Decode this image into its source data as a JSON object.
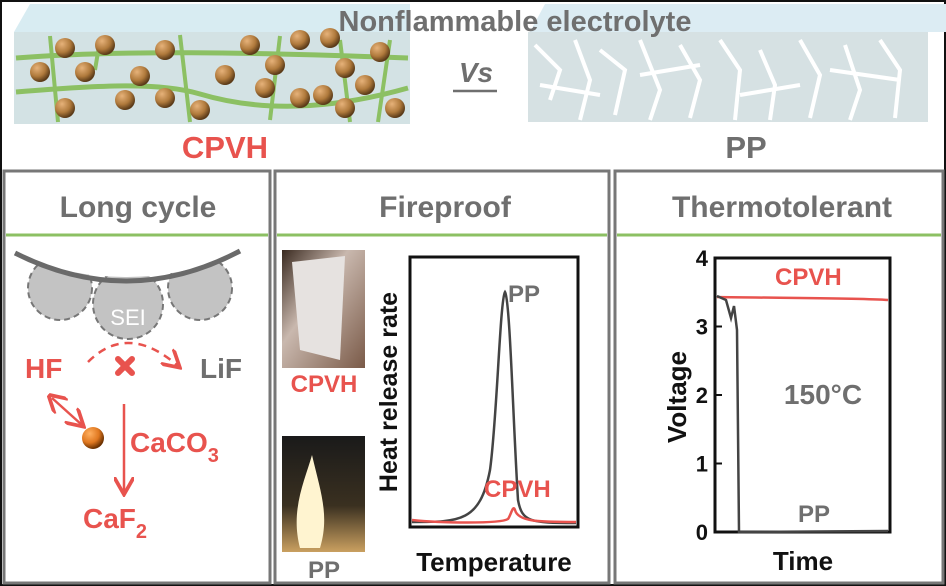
{
  "header": {
    "title": "Nonflammable electrolyte",
    "vs": "Vs",
    "left_label": "CPVH",
    "right_label": "PP"
  },
  "colors": {
    "red": "#e8534e",
    "gray": "#6f6f6f",
    "green": "#8cc063",
    "particle": "#b07a3c",
    "membrane": "#d3e2e4"
  },
  "panels": [
    {
      "title": "Long cycle",
      "sei": "SEI",
      "hf": "HF",
      "lif": "LiF",
      "caco3": "CaCO",
      "caco3_sub": "3",
      "caf2": "CaF",
      "caf2_sub": "2"
    },
    {
      "title": "Fireproof",
      "photo_top_label": "CPVH",
      "photo_bottom_label": "PP",
      "ylabel": "Heat release rate",
      "xlabel": "Temperature",
      "pp_label": "PP",
      "cpvh_label": "CPVH"
    },
    {
      "title": "Thermotolerant",
      "ylabel": "Voltage",
      "xlabel": "Time",
      "yticks": [
        "0",
        "1",
        "2",
        "3",
        "4"
      ],
      "cpvh_label": "CPVH",
      "pp_label": "PP",
      "temp_label": "150°C"
    }
  ],
  "chart_data": [
    {
      "type": "line",
      "xlabel": "Temperature",
      "ylabel": "Heat release rate",
      "series": [
        {
          "name": "PP",
          "color": "#444444",
          "shape": "single sharp high peak"
        },
        {
          "name": "CPVH",
          "color": "#e8534e",
          "shape": "flat baseline with small peak"
        }
      ]
    },
    {
      "type": "line",
      "xlabel": "Time",
      "ylabel": "Voltage",
      "ylim": [
        0,
        4
      ],
      "annotation": "150°C",
      "series": [
        {
          "name": "CPVH",
          "color": "#e8534e",
          "voltage": [
            3.4,
            3.4,
            3.4,
            3.35
          ]
        },
        {
          "name": "PP",
          "color": "#444444",
          "voltage": [
            3.4,
            3.3,
            0,
            0
          ]
        }
      ]
    }
  ]
}
